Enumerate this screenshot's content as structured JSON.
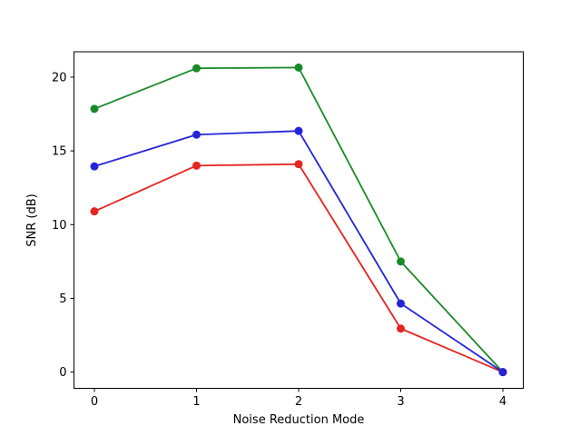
{
  "figure": {
    "background": "#ffffff"
  },
  "chart_data": {
    "type": "line",
    "title": "",
    "xlabel": "Noise Reduction Mode",
    "ylabel": "SNR (dB)",
    "x": [
      0,
      1,
      2,
      3,
      4
    ],
    "series": [
      {
        "name": "green",
        "color": "#1a8a28",
        "marker": "o",
        "values": [
          17.85,
          20.6,
          20.65,
          7.5,
          0.0
        ]
      },
      {
        "name": "red",
        "color": "#e62420",
        "marker": "o",
        "values": [
          10.9,
          14.0,
          14.1,
          2.95,
          0.0
        ]
      },
      {
        "name": "blue",
        "color": "#2424d9",
        "marker": "o",
        "values": [
          13.95,
          16.1,
          16.35,
          4.65,
          0.0
        ]
      }
    ],
    "xticks": [
      0,
      1,
      2,
      3,
      4
    ],
    "yticks": [
      0,
      5,
      10,
      15,
      20
    ],
    "xlim": [
      -0.2,
      4.2
    ],
    "ylim": [
      -1.1,
      21.72
    ],
    "grid": false,
    "legend": null,
    "axes_color": "#000000"
  }
}
